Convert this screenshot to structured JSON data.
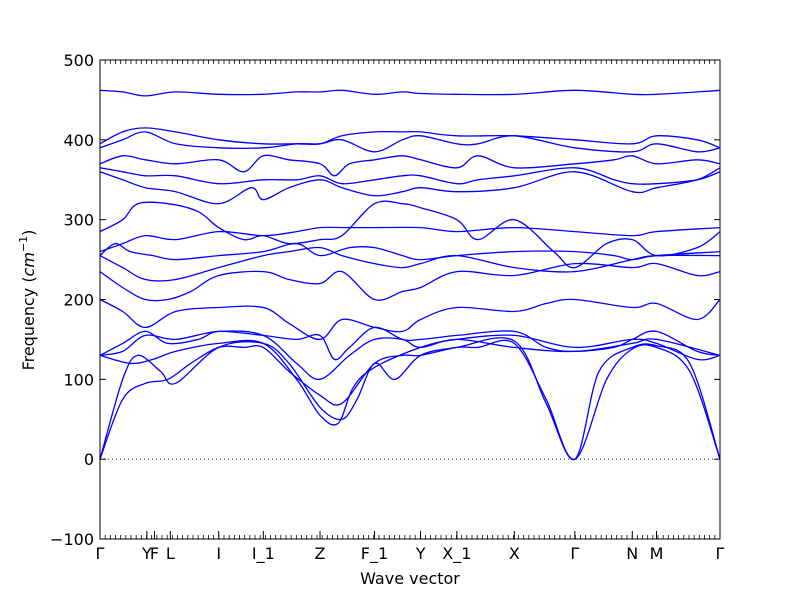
{
  "chart_data": {
    "type": "line",
    "title": "",
    "xlabel": "Wave vector",
    "ylabel_main": "Frequency (",
    "ylabel_unit": "cm",
    "ylabel_exp": "−1",
    "ylabel_close": ")",
    "ylim": [
      -100,
      500
    ],
    "xlim": [
      0,
      8.2
    ],
    "y_ticks": [
      -100,
      0,
      100,
      200,
      300,
      400,
      500
    ],
    "zero_line": {
      "y": 0,
      "style": "dotted"
    },
    "grid": false,
    "legend": "none",
    "color": "#0000ff",
    "x_ticks": [
      {
        "label": "Γ",
        "x": 0.0
      },
      {
        "label": "Y",
        "x": 0.62
      },
      {
        "label": "F",
        "x": 0.72
      },
      {
        "label": "L",
        "x": 0.93
      },
      {
        "label": "I",
        "x": 1.57
      },
      {
        "label": "I_1",
        "x": 2.16
      },
      {
        "label": "Z",
        "x": 2.91
      },
      {
        "label": "F_1",
        "x": 3.63
      },
      {
        "label": "Y",
        "x": 4.24
      },
      {
        "label": "X_1",
        "x": 4.72
      },
      {
        "label": "X",
        "x": 5.48
      },
      {
        "label": "Γ",
        "x": 6.28
      },
      {
        "label": "N",
        "x": 7.04
      },
      {
        "label": "M",
        "x": 7.36
      },
      {
        "label": "Γ",
        "x": 8.2
      }
    ],
    "series": [
      {
        "x": [
          0,
          0.3,
          0.6,
          0.9,
          1.2,
          1.57,
          1.9,
          2.16,
          2.5,
          2.91,
          3.2,
          3.63,
          4.0,
          4.24,
          4.72,
          5.0,
          5.48,
          5.9,
          6.28,
          6.7,
          7.04,
          7.36,
          7.8,
          8.2
        ],
        "values": [
          0,
          75,
          95,
          100,
          120,
          140,
          140,
          140,
          110,
          80,
          70,
          120,
          130,
          130,
          140,
          140,
          145,
          75,
          0,
          100,
          138,
          140,
          110,
          0
        ]
      },
      {
        "x": [
          0,
          0.3,
          0.5,
          0.8,
          1.0,
          1.57,
          2.16,
          2.5,
          2.91,
          3.2,
          3.4,
          3.63,
          3.9,
          4.24,
          4.72,
          5.48,
          5.9,
          6.28,
          6.6,
          7.04,
          7.36,
          7.8,
          8.2
        ],
        "values": [
          0,
          100,
          130,
          110,
          95,
          140,
          145,
          120,
          65,
          50,
          75,
          120,
          100,
          130,
          140,
          148,
          70,
          0,
          110,
          140,
          142,
          120,
          0
        ]
      },
      {
        "x": [
          0,
          0.4,
          0.7,
          1.0,
          1.57,
          2.16,
          2.6,
          2.91,
          3.15,
          3.35,
          3.63,
          4.24,
          4.72,
          5.48,
          6.28,
          7.04,
          7.36,
          7.9,
          8.2
        ],
        "values": [
          130,
          120,
          125,
          135,
          145,
          145,
          100,
          55,
          45,
          90,
          115,
          140,
          150,
          155,
          140,
          150,
          145,
          125,
          130
        ]
      },
      {
        "x": [
          0,
          0.3,
          0.6,
          1.0,
          1.57,
          2.16,
          2.6,
          2.91,
          3.3,
          3.63,
          4.0,
          4.24,
          4.72,
          5.48,
          6.28,
          7.04,
          7.36,
          8.2
        ],
        "values": [
          130,
          135,
          155,
          150,
          160,
          155,
          120,
          100,
          130,
          150,
          150,
          140,
          150,
          140,
          135,
          145,
          150,
          130
        ]
      },
      {
        "x": [
          0,
          0.3,
          0.6,
          0.9,
          1.3,
          1.57,
          2.16,
          2.6,
          2.91,
          3.1,
          3.3,
          3.63,
          4.0,
          4.24,
          4.72,
          5.48,
          5.9,
          6.28,
          6.8,
          7.04,
          7.36,
          7.9,
          8.2
        ],
        "values": [
          130,
          145,
          160,
          145,
          150,
          160,
          155,
          150,
          155,
          125,
          140,
          165,
          150,
          150,
          155,
          160,
          140,
          135,
          140,
          150,
          160,
          135,
          130
        ]
      },
      {
        "x": [
          0,
          0.3,
          0.6,
          1.0,
          1.57,
          2.16,
          2.5,
          2.91,
          3.2,
          3.63,
          4.0,
          4.24,
          4.72,
          5.48,
          5.9,
          6.28,
          7.04,
          7.36,
          7.9,
          8.2
        ],
        "values": [
          200,
          185,
          165,
          185,
          190,
          190,
          170,
          150,
          175,
          165,
          160,
          175,
          190,
          185,
          195,
          200,
          190,
          195,
          175,
          200
        ]
      },
      {
        "x": [
          0,
          0.3,
          0.6,
          0.9,
          1.2,
          1.57,
          2.16,
          2.5,
          2.91,
          3.2,
          3.63,
          4.0,
          4.24,
          4.72,
          5.48,
          6.28,
          7.04,
          7.36,
          7.9,
          8.2
        ],
        "values": [
          235,
          215,
          200,
          200,
          210,
          230,
          235,
          225,
          220,
          235,
          200,
          210,
          215,
          235,
          230,
          245,
          240,
          245,
          230,
          235
        ]
      },
      {
        "x": [
          0,
          0.3,
          0.6,
          1.0,
          1.57,
          2.16,
          2.5,
          2.91,
          3.2,
          3.63,
          4.0,
          4.24,
          4.72,
          5.48,
          6.28,
          7.04,
          7.36,
          8.2
        ],
        "values": [
          255,
          240,
          225,
          225,
          240,
          255,
          260,
          265,
          255,
          245,
          240,
          245,
          255,
          240,
          235,
          250,
          255,
          255
        ]
      },
      {
        "x": [
          0,
          0.2,
          0.4,
          0.7,
          1.0,
          1.57,
          2.16,
          2.6,
          2.91,
          3.3,
          3.63,
          4.0,
          4.24,
          4.72,
          5.48,
          6.28,
          6.8,
          7.04,
          7.36,
          8.2
        ],
        "values": [
          255,
          270,
          260,
          255,
          250,
          255,
          260,
          270,
          255,
          265,
          265,
          255,
          250,
          255,
          260,
          260,
          255,
          250,
          255,
          260
        ]
      },
      {
        "x": [
          0,
          0.3,
          0.6,
          1.0,
          1.57,
          2.16,
          2.6,
          2.91,
          3.3,
          3.63,
          4.24,
          4.72,
          5.48,
          6.28,
          7.04,
          7.36,
          8.2
        ],
        "values": [
          260,
          270,
          280,
          275,
          285,
          280,
          285,
          290,
          290,
          290,
          290,
          285,
          290,
          285,
          280,
          285,
          290
        ]
      },
      {
        "x": [
          0,
          0.3,
          0.5,
          0.9,
          1.3,
          1.57,
          1.9,
          2.16,
          2.5,
          2.91,
          3.2,
          3.63,
          4.0,
          4.24,
          4.72,
          5.0,
          5.48,
          6.0,
          6.28,
          6.7,
          7.04,
          7.36,
          7.9,
          8.2
        ],
        "values": [
          285,
          300,
          320,
          320,
          310,
          290,
          275,
          280,
          270,
          275,
          280,
          320,
          320,
          315,
          300,
          275,
          300,
          260,
          240,
          270,
          275,
          255,
          265,
          285
        ]
      },
      {
        "x": [
          0,
          0.3,
          0.6,
          1.0,
          1.57,
          2.0,
          2.16,
          2.5,
          2.91,
          3.2,
          3.63,
          4.0,
          4.24,
          4.72,
          5.48,
          6.28,
          7.04,
          7.36,
          7.9,
          8.2
        ],
        "values": [
          360,
          350,
          340,
          335,
          320,
          340,
          325,
          340,
          350,
          340,
          330,
          335,
          340,
          335,
          340,
          360,
          335,
          340,
          350,
          365
        ]
      },
      {
        "x": [
          0,
          0.3,
          0.6,
          1.0,
          1.57,
          2.16,
          2.6,
          2.91,
          3.2,
          3.63,
          4.0,
          4.24,
          4.72,
          5.0,
          5.48,
          6.28,
          6.8,
          7.04,
          7.36,
          7.9,
          8.2
        ],
        "values": [
          365,
          360,
          355,
          355,
          345,
          350,
          350,
          355,
          345,
          350,
          355,
          355,
          345,
          350,
          355,
          365,
          350,
          345,
          345,
          350,
          360
        ]
      },
      {
        "x": [
          0,
          0.3,
          0.6,
          1.0,
          1.57,
          1.9,
          2.16,
          2.5,
          2.91,
          3.1,
          3.3,
          3.63,
          4.0,
          4.24,
          4.72,
          5.0,
          5.48,
          6.28,
          6.8,
          7.04,
          7.36,
          7.9,
          8.2
        ],
        "values": [
          370,
          380,
          375,
          370,
          375,
          360,
          380,
          375,
          370,
          355,
          370,
          375,
          380,
          375,
          365,
          380,
          365,
          370,
          375,
          380,
          370,
          375,
          370
        ]
      },
      {
        "x": [
          0,
          0.3,
          0.6,
          1.0,
          1.57,
          2.16,
          2.6,
          2.91,
          3.2,
          3.63,
          4.0,
          4.24,
          4.72,
          5.0,
          5.48,
          6.28,
          7.04,
          7.36,
          7.9,
          8.2
        ],
        "values": [
          390,
          400,
          410,
          395,
          390,
          390,
          395,
          395,
          400,
          385,
          400,
          405,
          395,
          395,
          405,
          390,
          385,
          395,
          385,
          390
        ]
      },
      {
        "x": [
          0,
          0.3,
          0.6,
          1.0,
          1.57,
          2.16,
          2.6,
          2.91,
          3.2,
          3.63,
          4.0,
          4.24,
          4.72,
          5.48,
          6.28,
          7.04,
          7.36,
          7.9,
          8.2
        ],
        "values": [
          395,
          410,
          415,
          410,
          400,
          395,
          395,
          395,
          405,
          410,
          410,
          410,
          405,
          405,
          400,
          395,
          405,
          400,
          390
        ]
      },
      {
        "x": [
          0,
          0.3,
          0.6,
          1.0,
          1.57,
          2.16,
          2.6,
          2.91,
          3.2,
          3.63,
          4.0,
          4.24,
          4.72,
          5.48,
          6.28,
          7.04,
          7.36,
          7.9,
          8.2
        ],
        "values": [
          462,
          460,
          455,
          460,
          457,
          457,
          460,
          460,
          462,
          457,
          460,
          458,
          457,
          457,
          462,
          457,
          457,
          460,
          462
        ]
      }
    ]
  }
}
